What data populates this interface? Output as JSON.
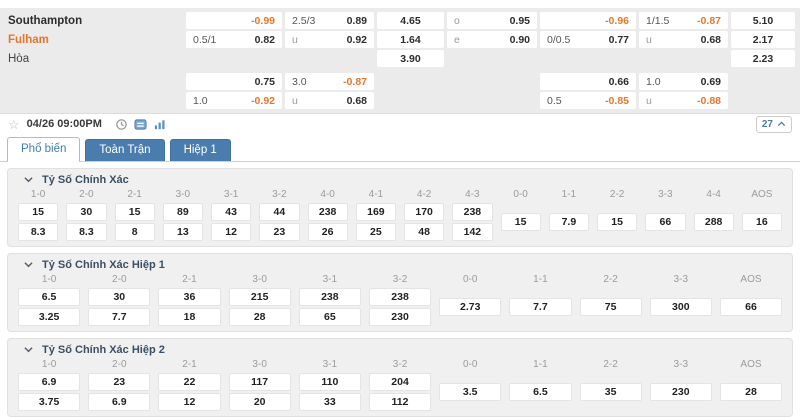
{
  "icons": {
    "star": "☆"
  },
  "top_odds": {
    "rows": [
      {
        "team": "Southampton",
        "team_style": "home",
        "cells": {
          "c1": {
            "r": "-0.99"
          },
          "c2": {
            "l": "2.5/3",
            "r": "0.89"
          },
          "c3": {
            "c": "4.65"
          },
          "c4": {
            "l": "o",
            "r": "0.95"
          },
          "c5": {
            "r": "-0.96"
          },
          "c6": {
            "l": "1/1.5",
            "r": "-0.87"
          },
          "c7": {
            "c": "5.10"
          }
        }
      },
      {
        "team": "Fulham",
        "team_style": "away",
        "cells": {
          "c1": {
            "l": "0.5/1",
            "r": "0.82"
          },
          "c2": {
            "l": "u",
            "r": "0.92"
          },
          "c3": {
            "c": "1.64"
          },
          "c4": {
            "l": "e",
            "r": "0.90"
          },
          "c5": {
            "l": "0/0.5",
            "r": "0.77"
          },
          "c6": {
            "l": "u",
            "r": "0.68"
          },
          "c7": {
            "c": "2.17"
          }
        }
      },
      {
        "team": "Hòa",
        "team_style": "draw",
        "cells": {
          "c3": {
            "c": "3.90"
          },
          "c7": {
            "c": "2.23"
          }
        }
      },
      {
        "team": "",
        "gap_before": true,
        "cells": {
          "c1": {
            "r": "0.75"
          },
          "c2": {
            "l": "3.0",
            "r": "-0.87"
          },
          "c5": {
            "r": "0.66"
          },
          "c6": {
            "l": "1.0",
            "r": "0.69"
          }
        }
      },
      {
        "team": "",
        "cells": {
          "c1": {
            "l": "1.0",
            "r": "-0.92"
          },
          "c2": {
            "l": "u",
            "r": "0.68"
          },
          "c5": {
            "l": "0.5",
            "r": "-0.85"
          },
          "c6": {
            "l": "u",
            "r": "-0.88"
          }
        }
      }
    ]
  },
  "toolbar": {
    "datetime": "04/26 09:00PM",
    "market_count": "27"
  },
  "tabs": [
    {
      "name": "tab-popular",
      "label": "Phổ biến",
      "active": true
    },
    {
      "name": "tab-full-match",
      "label": "Toàn Trận",
      "active": false
    },
    {
      "name": "tab-first-half",
      "label": "Hiệp 1",
      "active": false
    }
  ],
  "sections": [
    {
      "name": "correct-score",
      "title": "Tỷ Số Chính Xác",
      "score_cols": [
        {
          "h": "1-0",
          "v1": "15",
          "v2": "8.3"
        },
        {
          "h": "2-0",
          "v1": "30",
          "v2": "8.3"
        },
        {
          "h": "2-1",
          "v1": "15",
          "v2": "8"
        },
        {
          "h": "3-0",
          "v1": "89",
          "v2": "13"
        },
        {
          "h": "3-1",
          "v1": "43",
          "v2": "12"
        },
        {
          "h": "3-2",
          "v1": "44",
          "v2": "23"
        },
        {
          "h": "4-0",
          "v1": "238",
          "v2": "26"
        },
        {
          "h": "4-1",
          "v1": "169",
          "v2": "25"
        },
        {
          "h": "4-2",
          "v1": "170",
          "v2": "48"
        },
        {
          "h": "4-3",
          "v1": "238",
          "v2": "142"
        }
      ],
      "draw_cols": [
        {
          "h": "0-0",
          "v": "15"
        },
        {
          "h": "1-1",
          "v": "7.9"
        },
        {
          "h": "2-2",
          "v": "15"
        },
        {
          "h": "3-3",
          "v": "66"
        },
        {
          "h": "4-4",
          "v": "288"
        },
        {
          "h": "AOS",
          "v": "16"
        }
      ]
    },
    {
      "name": "correct-score-1h",
      "title": "Tỷ Số Chính Xác Hiệp 1",
      "score_cols": [
        {
          "h": "1-0",
          "v1": "6.5",
          "v2": "3.25"
        },
        {
          "h": "2-0",
          "v1": "30",
          "v2": "7.7"
        },
        {
          "h": "2-1",
          "v1": "36",
          "v2": "18"
        },
        {
          "h": "3-0",
          "v1": "215",
          "v2": "28"
        },
        {
          "h": "3-1",
          "v1": "238",
          "v2": "65"
        },
        {
          "h": "3-2",
          "v1": "238",
          "v2": "230"
        }
      ],
      "draw_cols": [
        {
          "h": "0-0",
          "v": "2.73"
        },
        {
          "h": "1-1",
          "v": "7.7"
        },
        {
          "h": "2-2",
          "v": "75"
        },
        {
          "h": "3-3",
          "v": "300"
        },
        {
          "h": "AOS",
          "v": "66"
        }
      ]
    },
    {
      "name": "correct-score-2h",
      "title": "Tỷ Số Chính Xác Hiệp 2",
      "score_cols": [
        {
          "h": "1-0",
          "v1": "6.9",
          "v2": "3.75"
        },
        {
          "h": "2-0",
          "v1": "23",
          "v2": "6.9"
        },
        {
          "h": "2-1",
          "v1": "22",
          "v2": "12"
        },
        {
          "h": "3-0",
          "v1": "117",
          "v2": "20"
        },
        {
          "h": "3-1",
          "v1": "110",
          "v2": "33"
        },
        {
          "h": "3-2",
          "v1": "204",
          "v2": "112"
        }
      ],
      "draw_cols": [
        {
          "h": "0-0",
          "v": "3.5"
        },
        {
          "h": "1-1",
          "v": "6.5"
        },
        {
          "h": "2-2",
          "v": "35"
        },
        {
          "h": "3-3",
          "v": "230"
        },
        {
          "h": "AOS",
          "v": "28"
        }
      ]
    }
  ]
}
